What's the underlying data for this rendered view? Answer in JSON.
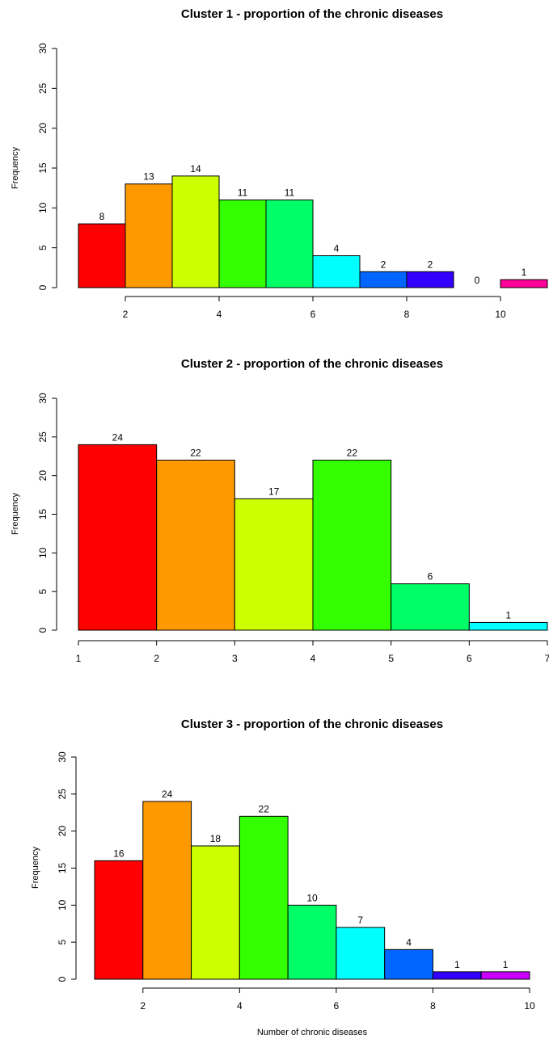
{
  "chart_data": [
    {
      "type": "bar",
      "title": "Cluster 1 - proportion of the chronic diseases",
      "xlabel": "",
      "ylabel": "Frequency",
      "bins": [
        [
          1,
          2
        ],
        [
          2,
          3
        ],
        [
          3,
          4
        ],
        [
          4,
          5
        ],
        [
          5,
          6
        ],
        [
          6,
          7
        ],
        [
          7,
          8
        ],
        [
          8,
          9
        ],
        [
          9,
          10
        ],
        [
          10,
          11
        ]
      ],
      "values": [
        8,
        13,
        14,
        11,
        11,
        4,
        2,
        2,
        0,
        1
      ],
      "colors": [
        "#FF0000",
        "#FF9900",
        "#CCFF00",
        "#33FF00",
        "#00FF66",
        "#00FFFF",
        "#0066FF",
        "#3300FF",
        "#CC00FF",
        "#FF0099"
      ],
      "xlim": [
        1,
        11
      ],
      "ylim": [
        0,
        30
      ],
      "xticks": [
        2,
        4,
        6,
        8,
        10
      ],
      "yticks": [
        0,
        5,
        10,
        15,
        20,
        25,
        30
      ],
      "grid": false
    },
    {
      "type": "bar",
      "title": "Cluster 2 - proportion of the chronic diseases",
      "xlabel": "",
      "ylabel": "Frequency",
      "bins": [
        [
          1,
          2
        ],
        [
          2,
          3
        ],
        [
          3,
          4
        ],
        [
          4,
          5
        ],
        [
          5,
          6
        ],
        [
          6,
          7
        ]
      ],
      "values": [
        24,
        22,
        17,
        22,
        6,
        1
      ],
      "colors": [
        "#FF0000",
        "#FF9900",
        "#CCFF00",
        "#33FF00",
        "#00FF66",
        "#00FFFF"
      ],
      "xlim": [
        1,
        7
      ],
      "ylim": [
        0,
        30
      ],
      "xticks": [
        1,
        2,
        3,
        4,
        5,
        6,
        7
      ],
      "yticks": [
        0,
        5,
        10,
        15,
        20,
        25,
        30
      ],
      "grid": false
    },
    {
      "type": "bar",
      "title": "Cluster 3 - proportion of the chronic diseases",
      "xlabel": "Number of chronic diseases",
      "ylabel": "Frequency",
      "bins": [
        [
          1,
          2
        ],
        [
          2,
          3
        ],
        [
          3,
          4
        ],
        [
          4,
          5
        ],
        [
          5,
          6
        ],
        [
          6,
          7
        ],
        [
          7,
          8
        ],
        [
          8,
          9
        ],
        [
          9,
          10
        ]
      ],
      "values": [
        16,
        24,
        18,
        22,
        10,
        7,
        4,
        1,
        1
      ],
      "colors": [
        "#FF0000",
        "#FF9900",
        "#CCFF00",
        "#33FF00",
        "#00FF66",
        "#00FFFF",
        "#0066FF",
        "#3300FF",
        "#CC00FF"
      ],
      "xlim": [
        1,
        10
      ],
      "ylim": [
        0,
        30
      ],
      "xticks": [
        2,
        4,
        6,
        8,
        10
      ],
      "yticks": [
        0,
        5,
        10,
        15,
        20,
        25,
        30
      ],
      "grid": false
    }
  ]
}
